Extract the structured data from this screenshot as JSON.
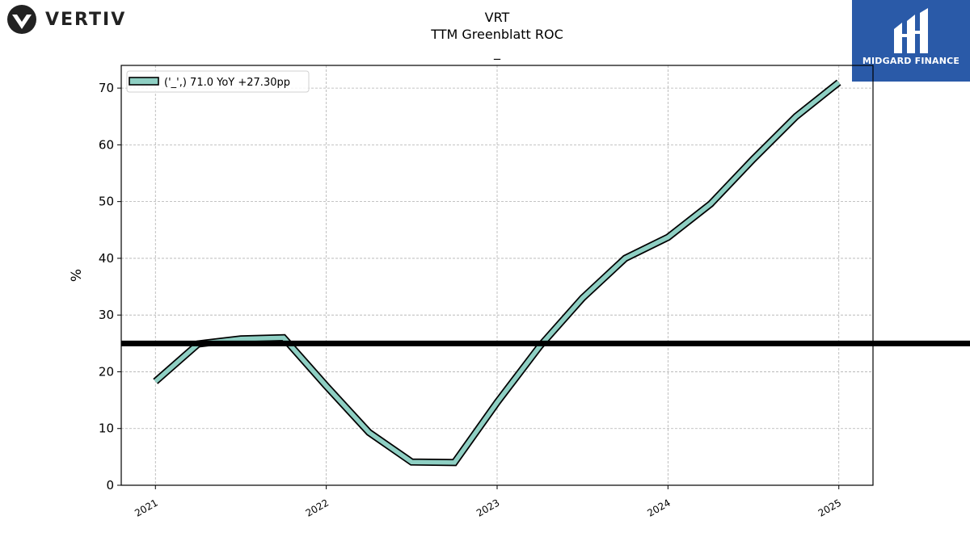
{
  "header": {
    "ticker": "VRT",
    "metric": "TTM Greenblatt ROC",
    "subtitle": "_"
  },
  "logos": {
    "left_brand": "VERTIV",
    "right_brand": "MIDGARD FINANCE",
    "right_brand_color": "#2a5aa8"
  },
  "chart_data": {
    "type": "line",
    "title": "VRT\nTTM Greenblatt ROC\n_",
    "ylabel": "%",
    "xlabel": "",
    "ylim": [
      0,
      74
    ],
    "yticks": [
      0,
      10,
      20,
      30,
      40,
      50,
      60,
      70
    ],
    "xticks": [
      "2021",
      "2022",
      "2023",
      "2024",
      "2025"
    ],
    "grid": true,
    "legend_placement": "top-left",
    "series": [
      {
        "name": "('_',) 71.0 YoY +27.30pp",
        "color": "#8ecfc3",
        "x": [
          2021.0,
          2021.25,
          2021.5,
          2021.75,
          2022.0,
          2022.25,
          2022.5,
          2022.75,
          2023.0,
          2023.25,
          2023.5,
          2023.75,
          2024.0,
          2024.25,
          2024.5,
          2024.75,
          2025.0
        ],
        "y": [
          18.3,
          24.9,
          25.8,
          26.0,
          17.5,
          9.3,
          4.1,
          4.0,
          14.6,
          24.5,
          33.0,
          40.0,
          43.7,
          49.6,
          57.5,
          65.0,
          71.0
        ]
      }
    ],
    "reference_line": {
      "y": 25,
      "color": "#000000"
    }
  }
}
